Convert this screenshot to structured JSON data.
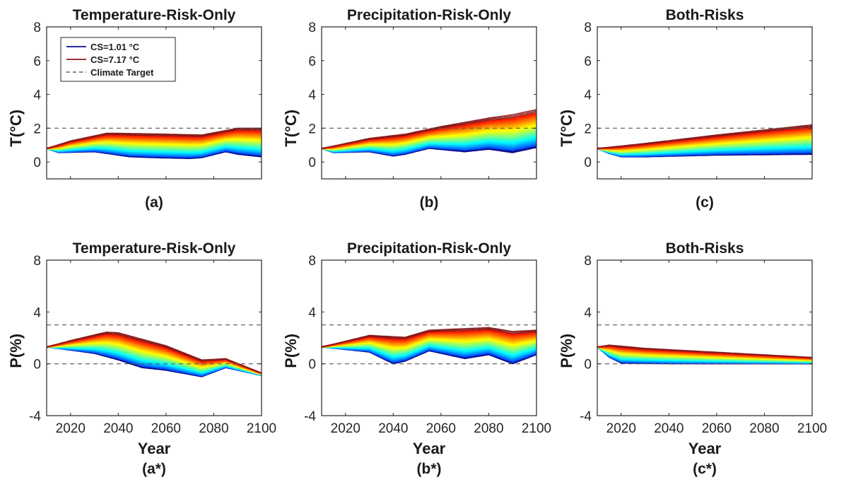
{
  "chart_data": [
    {
      "type": "line",
      "id": "a",
      "title": "Temperature-Risk-Only",
      "panel_label": "(a)",
      "ylabel": "T(°C)",
      "xlabel": "",
      "xlim": [
        2010,
        2100
      ],
      "ylim": [
        -1,
        8
      ],
      "yticks": [
        "0",
        "2",
        "4",
        "6",
        "8"
      ],
      "xticks": [],
      "target_lines": [
        2
      ],
      "low": [
        [
          2010,
          0.8
        ],
        [
          2015,
          0.55
        ],
        [
          2030,
          0.6
        ],
        [
          2045,
          0.3
        ],
        [
          2055,
          0.25
        ],
        [
          2070,
          0.2
        ],
        [
          2075,
          0.25
        ],
        [
          2085,
          0.6
        ],
        [
          2090,
          0.45
        ],
        [
          2100,
          0.3
        ]
      ],
      "high": [
        [
          2010,
          0.8
        ],
        [
          2020,
          1.25
        ],
        [
          2035,
          1.7
        ],
        [
          2040,
          1.7
        ],
        [
          2060,
          1.65
        ],
        [
          2075,
          1.6
        ],
        [
          2090,
          2.0
        ],
        [
          2100,
          2.0
        ]
      ],
      "legend": {
        "position": "top-left",
        "entries": [
          {
            "name": "CS=1.01 °C",
            "color": "#0d0d8c",
            "style": "solid"
          },
          {
            "name": "CS=7.17 °C",
            "color": "#8b1a1a",
            "style": "solid"
          },
          {
            "name": "Climate Target",
            "color": "#777777",
            "style": "dashed"
          }
        ]
      }
    },
    {
      "type": "line",
      "id": "b",
      "title": "Precipitation-Risk-Only",
      "panel_label": "(b)",
      "ylabel": "T(°C)",
      "xlabel": "",
      "xlim": [
        2010,
        2100
      ],
      "ylim": [
        -1,
        8
      ],
      "yticks": [
        "0",
        "2",
        "4",
        "6",
        "8"
      ],
      "xticks": [],
      "target_lines": [
        2
      ],
      "low": [
        [
          2010,
          0.8
        ],
        [
          2015,
          0.55
        ],
        [
          2030,
          0.6
        ],
        [
          2040,
          0.35
        ],
        [
          2045,
          0.45
        ],
        [
          2055,
          0.8
        ],
        [
          2070,
          0.6
        ],
        [
          2080,
          0.75
        ],
        [
          2090,
          0.55
        ],
        [
          2100,
          0.85
        ]
      ],
      "high": [
        [
          2010,
          0.8
        ],
        [
          2030,
          1.4
        ],
        [
          2045,
          1.65
        ],
        [
          2060,
          2.1
        ],
        [
          2080,
          2.6
        ],
        [
          2090,
          2.8
        ],
        [
          2100,
          3.1
        ]
      ]
    },
    {
      "type": "line",
      "id": "c",
      "title": "Both-Risks",
      "panel_label": "(c)",
      "ylabel": "T(°C)",
      "xlabel": "",
      "xlim": [
        2010,
        2100
      ],
      "ylim": [
        -1,
        8
      ],
      "yticks": [
        "0",
        "2",
        "4",
        "6",
        "8"
      ],
      "xticks": [],
      "target_lines": [
        2
      ],
      "low": [
        [
          2010,
          0.8
        ],
        [
          2015,
          0.5
        ],
        [
          2020,
          0.3
        ],
        [
          2030,
          0.3
        ],
        [
          2060,
          0.4
        ],
        [
          2100,
          0.45
        ]
      ],
      "high": [
        [
          2010,
          0.8
        ],
        [
          2030,
          1.1
        ],
        [
          2060,
          1.6
        ],
        [
          2100,
          2.2
        ]
      ]
    },
    {
      "type": "line",
      "id": "a*",
      "title": "Temperature-Risk-Only",
      "panel_label": "(a*)",
      "ylabel": "P(%)",
      "xlabel": "Year",
      "xlim": [
        2010,
        2100
      ],
      "ylim": [
        -4,
        8
      ],
      "yticks": [
        "-4",
        "0",
        "4",
        "8"
      ],
      "xticks": [
        "2020",
        "2040",
        "2060",
        "2080",
        "2100"
      ],
      "target_lines": [
        3,
        0
      ],
      "low": [
        [
          2010,
          1.3
        ],
        [
          2030,
          0.8
        ],
        [
          2040,
          0.3
        ],
        [
          2050,
          -0.3
        ],
        [
          2060,
          -0.5
        ],
        [
          2075,
          -1.0
        ],
        [
          2085,
          -0.3
        ],
        [
          2090,
          -0.5
        ],
        [
          2100,
          -0.9
        ]
      ],
      "high": [
        [
          2010,
          1.3
        ],
        [
          2020,
          1.8
        ],
        [
          2035,
          2.45
        ],
        [
          2040,
          2.4
        ],
        [
          2060,
          1.4
        ],
        [
          2075,
          0.3
        ],
        [
          2085,
          0.4
        ],
        [
          2100,
          -0.7
        ]
      ]
    },
    {
      "type": "line",
      "id": "b*",
      "title": "Precipitation-Risk-Only",
      "panel_label": "(b*)",
      "ylabel": "P(%)",
      "xlabel": "Year",
      "xlim": [
        2010,
        2100
      ],
      "ylim": [
        -4,
        8
      ],
      "yticks": [
        "-4",
        "0",
        "4",
        "8"
      ],
      "xticks": [
        "2020",
        "2040",
        "2060",
        "2080",
        "2100"
      ],
      "target_lines": [
        3,
        0
      ],
      "low": [
        [
          2010,
          1.3
        ],
        [
          2030,
          0.9
        ],
        [
          2040,
          0.0
        ],
        [
          2045,
          0.2
        ],
        [
          2055,
          1.0
        ],
        [
          2070,
          0.4
        ],
        [
          2080,
          0.7
        ],
        [
          2090,
          0.0
        ],
        [
          2100,
          0.7
        ]
      ],
      "high": [
        [
          2010,
          1.3
        ],
        [
          2030,
          2.2
        ],
        [
          2045,
          2.05
        ],
        [
          2055,
          2.6
        ],
        [
          2080,
          2.8
        ],
        [
          2090,
          2.5
        ],
        [
          2100,
          2.6
        ]
      ]
    },
    {
      "type": "line",
      "id": "c*",
      "title": "Both-Risks",
      "panel_label": "(c*)",
      "ylabel": "P(%)",
      "xlabel": "Year",
      "xlim": [
        2010,
        2100
      ],
      "ylim": [
        -4,
        8
      ],
      "yticks": [
        "-4",
        "0",
        "4",
        "8"
      ],
      "xticks": [
        "2020",
        "2040",
        "2060",
        "2080",
        "2100"
      ],
      "target_lines": [
        3,
        0
      ],
      "low": [
        [
          2010,
          1.3
        ],
        [
          2015,
          0.5
        ],
        [
          2020,
          0.05
        ],
        [
          2040,
          0.0
        ],
        [
          2100,
          0.0
        ]
      ],
      "high": [
        [
          2010,
          1.3
        ],
        [
          2015,
          1.45
        ],
        [
          2030,
          1.2
        ],
        [
          2060,
          0.9
        ],
        [
          2100,
          0.5
        ]
      ]
    }
  ]
}
